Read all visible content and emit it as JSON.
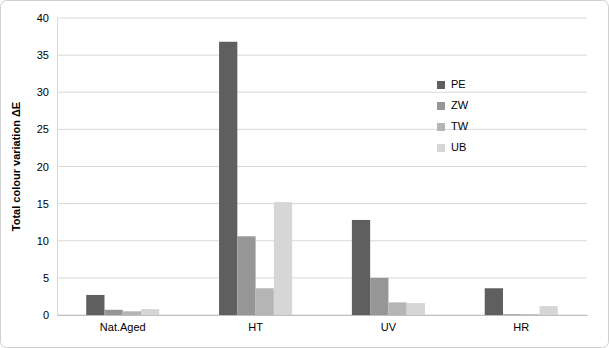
{
  "chart_data": {
    "type": "bar",
    "y_label": "Total colour variation ΔE",
    "categories": [
      "Nat.Aged",
      "HT",
      "UV",
      "HR"
    ],
    "series": [
      {
        "name": "PE",
        "color": "#5f5f5f",
        "values": [
          2.7,
          36.8,
          12.8,
          3.6
        ]
      },
      {
        "name": "ZW",
        "color": "#969696",
        "values": [
          0.7,
          10.6,
          5.0,
          0.1
        ]
      },
      {
        "name": "TW",
        "color": "#b5b5b5",
        "values": [
          0.5,
          3.6,
          1.7,
          0.1
        ]
      },
      {
        "name": "UB",
        "color": "#d6d6d6",
        "values": [
          0.8,
          15.2,
          1.6,
          1.2
        ]
      }
    ],
    "ylim": [
      0,
      40
    ],
    "yticks": [
      0,
      5,
      10,
      15,
      20,
      25,
      30,
      35,
      40
    ],
    "grid": true,
    "legend": "upper right"
  }
}
